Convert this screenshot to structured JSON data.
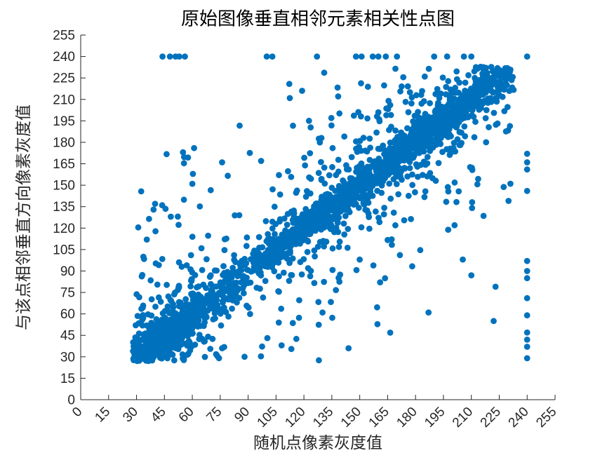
{
  "figure": {
    "background": "#ffffff"
  },
  "chart_data": {
    "type": "scatter",
    "title": "原始图像垂直相邻元素相关性点图",
    "xlabel": "随机点像素灰度值",
    "ylabel": "与该点相邻垂直方向像素灰度值",
    "xlim": [
      0,
      255
    ],
    "ylim": [
      0,
      255
    ],
    "xticks": [
      0,
      15,
      30,
      45,
      60,
      75,
      90,
      105,
      120,
      135,
      150,
      165,
      180,
      195,
      210,
      225,
      240,
      255
    ],
    "yticks": [
      0,
      15,
      30,
      45,
      60,
      75,
      90,
      105,
      120,
      135,
      150,
      165,
      180,
      195,
      210,
      225,
      240,
      255
    ],
    "grid": false,
    "box": false,
    "legend": null,
    "marker_color": "#0072BD",
    "marker_radius": 4.4,
    "axis_color": "#262626",
    "text_color": "#262626",
    "title_color": "#000000",
    "xtick_rotation_deg": -45,
    "saturated_row": {
      "y": 240,
      "x_values": [
        44,
        48,
        51,
        53,
        56,
        100,
        103,
        127,
        148,
        151,
        157,
        160,
        164,
        170,
        190,
        197,
        206,
        210,
        240
      ]
    },
    "saturated_column": {
      "x": 240,
      "y_values": [
        172,
        166,
        161,
        146,
        97,
        90,
        85,
        71,
        59,
        47,
        42,
        37,
        29
      ]
    },
    "outlier_points": [
      [
        119,
        216
      ],
      [
        177,
        215
      ],
      [
        55,
        173
      ],
      [
        40,
        137
      ],
      [
        76,
        166
      ],
      [
        97,
        167
      ],
      [
        223,
        79
      ],
      [
        222,
        55
      ],
      [
        150,
        98
      ],
      [
        187,
        61
      ],
      [
        210,
        87
      ],
      [
        230,
        139
      ],
      [
        144,
        36
      ],
      [
        108,
        38
      ],
      [
        76,
        36
      ],
      [
        60,
        151
      ],
      [
        130,
        61
      ],
      [
        201,
        122
      ]
    ],
    "cloud": {
      "description": "dense diagonal correlation cloud y ≈ x of gray values",
      "n": 2600,
      "seed": 20240716,
      "x_mixture": [
        {
          "w": 0.28,
          "mu": 45,
          "sigma": 14
        },
        {
          "w": 0.5,
          "mu": 135,
          "sigma": 42
        },
        {
          "w": 0.22,
          "mu": 200,
          "sigma": 22
        }
      ],
      "noise_mixture": [
        {
          "w": 0.62,
          "sigma": 6
        },
        {
          "w": 0.23,
          "sigma": 18
        },
        {
          "w": 0.12,
          "sigma": 45
        },
        {
          "w": 0.03,
          "uniform": 120
        }
      ],
      "x_range": [
        28,
        233
      ],
      "y_range": [
        27,
        233
      ]
    }
  }
}
